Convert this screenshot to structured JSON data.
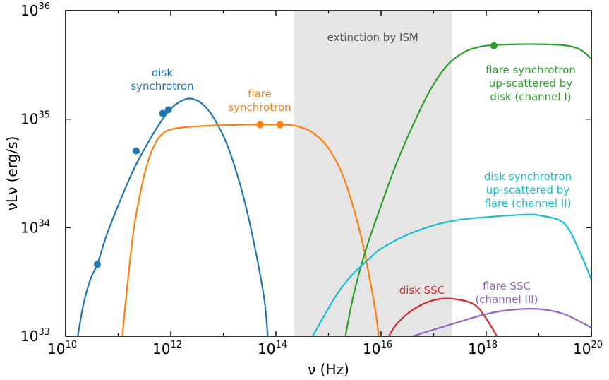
{
  "chart_data": {
    "type": "line",
    "title": "",
    "xlabel": "ν (Hz)",
    "ylabel": "νLν  (erg/s)",
    "xscale": "log",
    "yscale": "log",
    "xlim": [
      10000000000.0,
      1e+20
    ],
    "ylim": [
      1e+33,
      1e+36
    ],
    "grid": false,
    "x_ticks": [
      {
        "base": "10",
        "exp": "10",
        "value": 10000000000.0
      },
      {
        "base": "10",
        "exp": "12",
        "value": 1000000000000.0
      },
      {
        "base": "10",
        "exp": "14",
        "value": 100000000000000.0
      },
      {
        "base": "10",
        "exp": "16",
        "value": 1e+16
      },
      {
        "base": "10",
        "exp": "18",
        "value": 1e+18
      },
      {
        "base": "10",
        "exp": "20",
        "value": 1e+20
      }
    ],
    "y_ticks": [
      {
        "base": "10",
        "exp": "33",
        "value": 1e+33
      },
      {
        "base": "10",
        "exp": "34",
        "value": 1e+34
      },
      {
        "base": "10",
        "exp": "35",
        "value": 1e+35
      },
      {
        "base": "10",
        "exp": "36",
        "value": 1e+36
      }
    ],
    "shaded_region": {
      "x": [
        220000000000000.0,
        2.2e+17
      ],
      "label": "extinction by ISM",
      "color": "#e5e5e5",
      "label_color": "#555555"
    },
    "series": [
      {
        "key": "disk-synchrotron",
        "label_lines": [
          "disk",
          "synchrotron"
        ],
        "color": "#1f77b4",
        "x": [
          17000000000.0,
          22000000000.0,
          30000000000.0,
          40000000000.0,
          60000000000.0,
          100000000000.0,
          200000000000.0,
          400000000000.0,
          700000000000.0,
          1000000000000.0,
          1500000000000.0,
          2200000000000.0,
          3000000000000.0,
          4000000000000.0,
          6000000000000.0,
          10000000000000.0,
          15000000000000.0,
          25000000000000.0,
          40000000000000.0,
          60000000000000.0,
          70000000000000.0
        ],
        "y": [
          1e+33,
          2e+33,
          3.4e+33,
          4.6e+33,
          8.5e+33,
          1.6e+34,
          3.5e+34,
          6.5e+34,
          1e+35,
          1.25e+35,
          1.45e+35,
          1.55e+35,
          1.5e+35,
          1.38e+35,
          1.1e+35,
          7e+34,
          4.2e+34,
          1.8e+34,
          6.5e+33,
          2.2e+33,
          1e+33
        ],
        "markers": {
          "x": [
            40000000000.0,
            220000000000.0,
            700000000000.0,
            900000000000.0
          ],
          "y": [
            4.6e+33,
            5.1e+34,
            1.13e+35,
            1.22e+35
          ]
        }
      },
      {
        "key": "flare-synchrotron",
        "label_lines": [
          "flare",
          "synchrotron"
        ],
        "color": "#ff7f0e",
        "x": [
          120000000000.0,
          150000000000.0,
          200000000000.0,
          300000000000.0,
          400000000000.0,
          500000000000.0,
          600000000000.0,
          800000000000.0,
          1200000000000.0,
          2000000000000.0,
          5000000000000.0,
          10000000000000.0,
          30000000000000.0,
          60000000000000.0,
          100000000000000.0,
          200000000000000.0,
          300000000000000.0,
          500000000000000.0,
          1000000000000000.0,
          2000000000000000.0,
          4000000000000000.0,
          6000000000000000.0,
          8000000000000000.0,
          9000000000000000.0
        ],
        "y": [
          1e+33,
          3e+33,
          1e+34,
          2.8e+34,
          4.6e+34,
          5.9e+34,
          6.8e+34,
          7.7e+34,
          8.2e+34,
          8.45e+34,
          8.7e+34,
          8.8e+34,
          8.9e+34,
          8.9e+34,
          8.9e+34,
          8.8e+34,
          8.4e+34,
          7.5e+34,
          5.4e+34,
          2.8e+34,
          9e+33,
          3.5e+33,
          1.6e+33,
          1e+33
        ],
        "markers": {
          "x": [
            50000000000000.0,
            120000000000000.0
          ],
          "y": [
            8.9e+34,
            8.9e+34
          ]
        }
      },
      {
        "key": "flare-synchrotron-upscattered",
        "label_lines": [
          "flare synchrotron",
          "up-scattered by",
          "disk (channel I)"
        ],
        "color": "#2ca02c",
        "x": [
          2100000000000000.0,
          3000000000000000.0,
          5000000000000000.0,
          1e+16,
          2e+16,
          5e+16,
          1e+17,
          2e+17,
          4e+17,
          7e+17,
          1e+18,
          2e+18,
          5e+18,
          1e+19,
          3e+19,
          6e+19,
          1e+20
        ],
        "y": [
          1e+33,
          2.4e+33,
          6e+33,
          1.6e+34,
          4e+34,
          1.1e+35,
          2.1e+35,
          3.3e+35,
          4.2e+35,
          4.6e+35,
          4.75e+35,
          4.85e+35,
          4.9e+35,
          4.9e+35,
          4.8e+35,
          4.4e+35,
          3.6e+35
        ],
        "markers": {
          "x": [
            1.4e+18
          ],
          "y": [
            4.75e+35
          ]
        }
      },
      {
        "key": "disk-synchrotron-upscattered",
        "label_lines": [
          "disk synchrotron",
          "up-scattered by",
          "flare (channel II)"
        ],
        "color": "#17becf",
        "x": [
          500000000000000.0,
          800000000000000.0,
          1500000000000000.0,
          3000000000000000.0,
          6000000000000000.0,
          1e+16,
          3e+16,
          1e+17,
          3e+17,
          1e+18,
          3e+18,
          6e+18,
          1e+19,
          3e+19,
          6e+19,
          1e+20
        ],
        "y": [
          1e+33,
          1.5e+33,
          2.5e+33,
          3.8e+33,
          5.2e+33,
          6.4e+33,
          8.5e+33,
          1.05e+34,
          1.18e+34,
          1.25e+34,
          1.3e+34,
          1.32e+34,
          1.3e+34,
          1.1e+34,
          6e+33,
          3.3e+33
        ],
        "markers": {
          "x": [],
          "y": []
        }
      },
      {
        "key": "disk-ssc",
        "label_lines": [
          "disk SSC"
        ],
        "color": "#d62728",
        "x": [
          1.4e+16,
          2e+16,
          4e+16,
          1e+17,
          2.5e+17,
          6e+17,
          1e+18,
          1.6e+18
        ],
        "y": [
          1e+33,
          1.3e+33,
          1.75e+33,
          2.15e+33,
          2.2e+33,
          1.95e+33,
          1.45e+33,
          1e+33
        ],
        "markers": {
          "x": [],
          "y": []
        }
      },
      {
        "key": "flare-ssc",
        "label_lines": [
          "flare SSC",
          "(channel III)"
        ],
        "color": "#9467bd",
        "x": [
          4e+16,
          1e+17,
          3e+17,
          1e+18,
          3e+18,
          1e+19,
          3e+19,
          1e+20
        ],
        "y": [
          1e+33,
          1.15e+33,
          1.35e+33,
          1.6e+33,
          1.75e+33,
          1.78e+33,
          1.6e+33,
          1.2e+33
        ],
        "markers": {
          "x": [],
          "y": []
        }
      }
    ]
  }
}
